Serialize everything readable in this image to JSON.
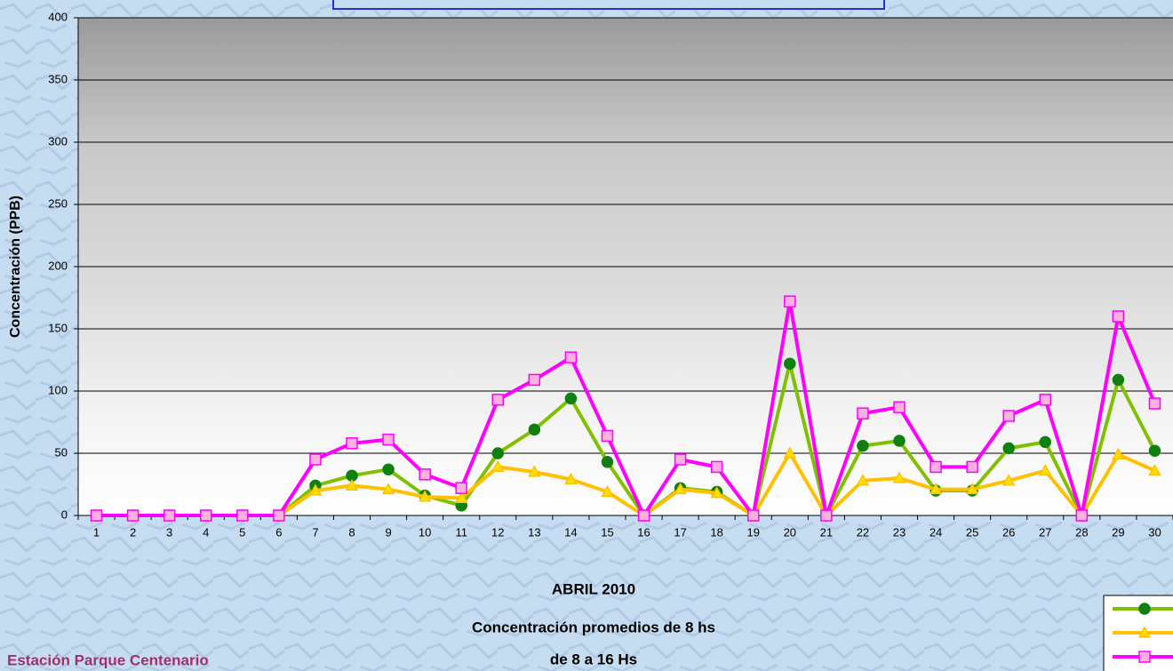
{
  "chart_data": {
    "type": "line",
    "y_label": "Concentración (PPB)",
    "title_lines": [
      "ABRIL 2010",
      "Concentración promedios de 8 hs",
      "de 8 a 16 Hs"
    ],
    "station": "Estación Parque Centenario",
    "categories": [
      "1",
      "2",
      "3",
      "4",
      "5",
      "6",
      "7",
      "8",
      "9",
      "10",
      "11",
      "12",
      "13",
      "14",
      "15",
      "16",
      "17",
      "18",
      "19",
      "20",
      "21",
      "22",
      "23",
      "24",
      "25",
      "26",
      "27",
      "28",
      "29",
      "30"
    ],
    "series": [
      {
        "color": "#80c000",
        "marker": "circle",
        "marker_color": "#108010",
        "values": [
          0,
          0,
          0,
          0,
          0,
          0,
          24,
          32,
          37,
          16,
          8,
          50,
          69,
          94,
          43,
          0,
          22,
          19,
          0,
          122,
          0,
          56,
          60,
          20,
          20,
          54,
          59,
          0,
          109,
          52
        ]
      },
      {
        "color": "#ffc000",
        "marker": "triangle",
        "marker_color": "#ffe000",
        "values": [
          0,
          0,
          0,
          0,
          0,
          0,
          20,
          24,
          21,
          15,
          14,
          39,
          35,
          29,
          19,
          0,
          21,
          18,
          0,
          50,
          0,
          28,
          30,
          21,
          21,
          28,
          36,
          0,
          49,
          36
        ]
      },
      {
        "color": "#ff00ff",
        "marker": "square",
        "marker_color": "#ffb0e0",
        "values": [
          0,
          0,
          0,
          0,
          0,
          0,
          45,
          58,
          61,
          33,
          22,
          93,
          109,
          127,
          64,
          0,
          45,
          39,
          0,
          172,
          0,
          82,
          87,
          39,
          39,
          80,
          93,
          0,
          160,
          90
        ]
      }
    ],
    "ylim": [
      0,
      400
    ],
    "yticks": [
      0,
      50,
      100,
      150,
      200,
      250,
      300,
      350,
      400
    ],
    "grid": true
  }
}
